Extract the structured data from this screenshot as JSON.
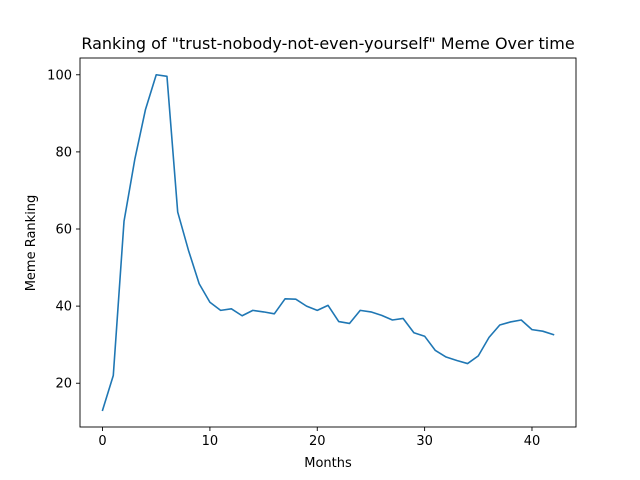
{
  "chart_data": {
    "type": "line",
    "title": "Ranking of \"trust-nobody-not-even-yourself\" Meme Over time",
    "xlabel": "Months",
    "ylabel": "Meme Ranking",
    "xlim": [
      -2.1,
      44.1
    ],
    "ylim": [
      8.65,
      104.35
    ],
    "xticks": [
      0,
      10,
      20,
      30,
      40
    ],
    "yticks": [
      20,
      40,
      60,
      80,
      100
    ],
    "grid": false,
    "line_color": "#1f77b4",
    "series": [
      {
        "x": [
          0,
          1,
          2,
          3,
          4,
          5,
          6,
          7,
          8,
          9,
          10,
          11,
          12,
          13,
          14,
          15,
          16,
          17,
          18,
          19,
          20,
          21,
          22,
          23,
          24,
          25,
          26,
          27,
          28,
          29,
          30,
          31,
          32,
          33,
          34,
          35,
          36,
          37,
          38,
          39,
          40,
          41,
          42
        ],
        "values": [
          13,
          22,
          62,
          78,
          91,
          100,
          99.6,
          64.4,
          54.5,
          45.8,
          41,
          38.9,
          39.3,
          37.5,
          38.9,
          38.5,
          38,
          41.9,
          41.8,
          40,
          38.9,
          40.2,
          36,
          35.5,
          38.9,
          38.5,
          37.6,
          36.4,
          36.8,
          33.1,
          32.2,
          28.5,
          26.8,
          25.9,
          25.1,
          27.1,
          31.9,
          35.1,
          35.9,
          36.4,
          33.9,
          33.5,
          32.6
        ]
      }
    ]
  }
}
